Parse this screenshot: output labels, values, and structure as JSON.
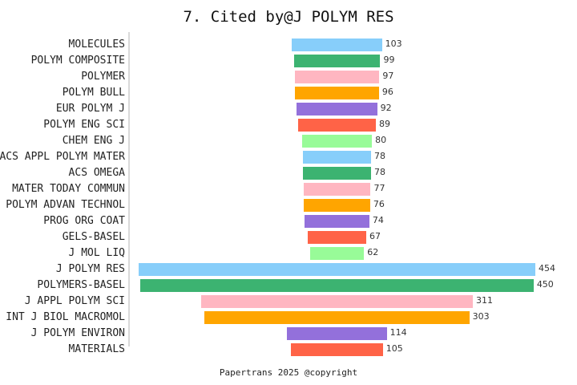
{
  "title": "7. Cited by@J POLYM RES",
  "footer": "Papertrans 2025 @copyright",
  "chart_data": {
    "type": "bar",
    "orientation": "horizontal-centered-funnel",
    "title": "7. Cited by@J POLYM RES",
    "xlabel": "",
    "ylabel": "",
    "grid": false,
    "legend": null,
    "categories": [
      "MOLECULES",
      "POLYM COMPOSITE",
      "POLYMER",
      "POLYM BULL",
      "EUR POLYM J",
      "POLYM ENG SCI",
      "CHEM ENG J",
      "ACS APPL POLYM MATER",
      "ACS OMEGA",
      "MATER TODAY COMMUN",
      "POLYM ADVAN TECHNOL",
      "PROG ORG COAT",
      "GELS-BASEL",
      "J MOL LIQ",
      "J POLYM RES",
      "POLYMERS-BASEL",
      "J APPL POLYM SCI",
      "INT J BIOL MACROMOL",
      "J POLYM ENVIRON",
      "MATERIALS"
    ],
    "values": [
      103,
      99,
      97,
      96,
      92,
      89,
      80,
      78,
      78,
      77,
      76,
      74,
      67,
      62,
      454,
      450,
      311,
      303,
      114,
      105
    ],
    "colors": [
      "#87CEFA",
      "#3CB371",
      "#FFB6C1",
      "#FFA500",
      "#9370DB",
      "#FF6347",
      "#98FB98",
      "#87CEFA",
      "#3CB371",
      "#FFB6C1",
      "#FFA500",
      "#9370DB",
      "#FF6347",
      "#98FB98",
      "#87CEFA",
      "#3CB371",
      "#FFB6C1",
      "#FFA500",
      "#9370DB",
      "#FF6347"
    ],
    "annotations": "Value labels shown at right end of each bar"
  }
}
